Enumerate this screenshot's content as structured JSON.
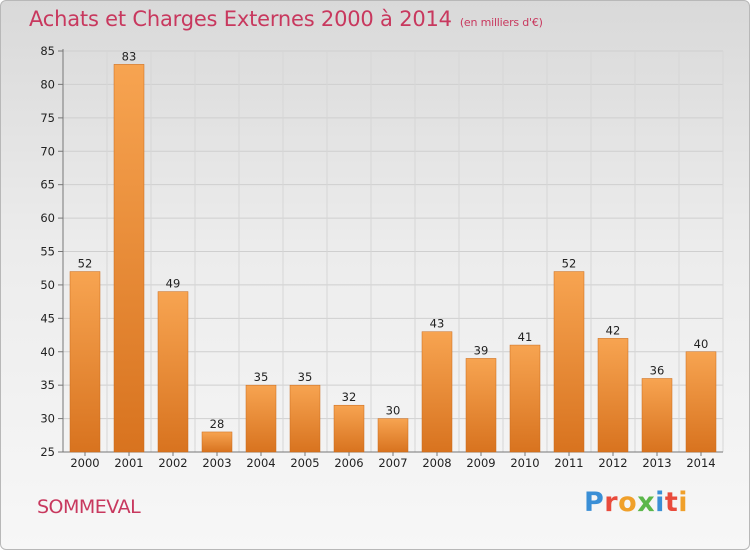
{
  "header": {
    "title": "Achats et Charges Externes 2000 à 2014",
    "unit": "(en milliers d'€)"
  },
  "footer": {
    "place": "SOMMEVAL"
  },
  "brand": {
    "letters": [
      {
        "ch": "P",
        "color": "#3a8fd6"
      },
      {
        "ch": "r",
        "color": "#e94b3c"
      },
      {
        "ch": "o",
        "color": "#f0a02a"
      },
      {
        "ch": "x",
        "color": "#5bb74a"
      },
      {
        "ch": "i",
        "color": "#3a8fd6"
      },
      {
        "ch": "t",
        "color": "#e94b3c"
      },
      {
        "ch": "i",
        "color": "#f0a02a"
      }
    ]
  },
  "chart_data": {
    "type": "bar",
    "title": "Achats et Charges Externes 2000 à 2014",
    "subtitle": "(en milliers d'€)",
    "categories": [
      "2000",
      "2001",
      "2002",
      "2003",
      "2004",
      "2005",
      "2006",
      "2007",
      "2008",
      "2009",
      "2010",
      "2011",
      "2012",
      "2013",
      "2014"
    ],
    "values": [
      52,
      83,
      49,
      28,
      35,
      35,
      32,
      30,
      43,
      39,
      41,
      52,
      42,
      36,
      40
    ],
    "ylim": [
      25,
      85
    ],
    "yticks": [
      25,
      30,
      35,
      40,
      45,
      50,
      55,
      60,
      65,
      70,
      75,
      80,
      85
    ],
    "grid": true,
    "bar_color": "#f0903a"
  }
}
